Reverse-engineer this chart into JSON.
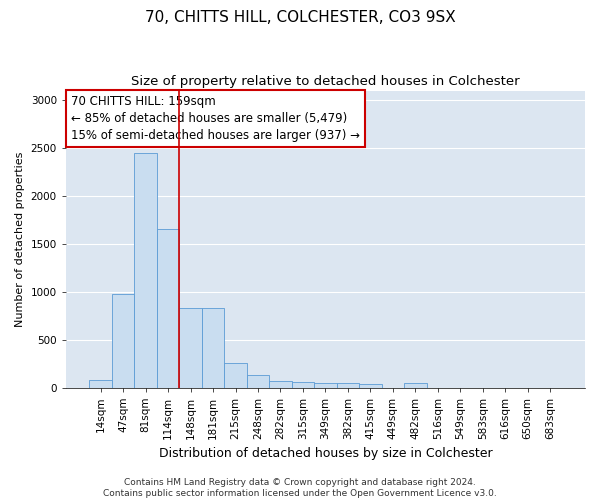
{
  "title": "70, CHITTS HILL, COLCHESTER, CO3 9SX",
  "subtitle": "Size of property relative to detached houses in Colchester",
  "xlabel": "Distribution of detached houses by size in Colchester",
  "ylabel": "Number of detached properties",
  "categories": [
    "14sqm",
    "47sqm",
    "81sqm",
    "114sqm",
    "148sqm",
    "181sqm",
    "215sqm",
    "248sqm",
    "282sqm",
    "315sqm",
    "349sqm",
    "382sqm",
    "415sqm",
    "449sqm",
    "482sqm",
    "516sqm",
    "549sqm",
    "583sqm",
    "616sqm",
    "650sqm",
    "683sqm"
  ],
  "values": [
    75,
    975,
    2450,
    1650,
    830,
    830,
    255,
    130,
    65,
    55,
    50,
    45,
    40,
    0,
    50,
    0,
    0,
    0,
    0,
    0,
    0
  ],
  "bar_color": "#c9ddf0",
  "bar_edge_color": "#5b9bd5",
  "background_color": "#dce6f1",
  "annotation_box_text": "70 CHITTS HILL: 159sqm\n← 85% of detached houses are smaller (5,479)\n15% of semi-detached houses are larger (937) →",
  "vline_x": 3.5,
  "vline_color": "#cc0000",
  "ylim": [
    0,
    3100
  ],
  "yticks": [
    0,
    500,
    1000,
    1500,
    2000,
    2500,
    3000
  ],
  "footnote": "Contains HM Land Registry data © Crown copyright and database right 2024.\nContains public sector information licensed under the Open Government Licence v3.0.",
  "title_fontsize": 11,
  "subtitle_fontsize": 9.5,
  "xlabel_fontsize": 9,
  "ylabel_fontsize": 8,
  "tick_fontsize": 7.5,
  "annot_fontsize": 8.5,
  "footnote_fontsize": 6.5
}
